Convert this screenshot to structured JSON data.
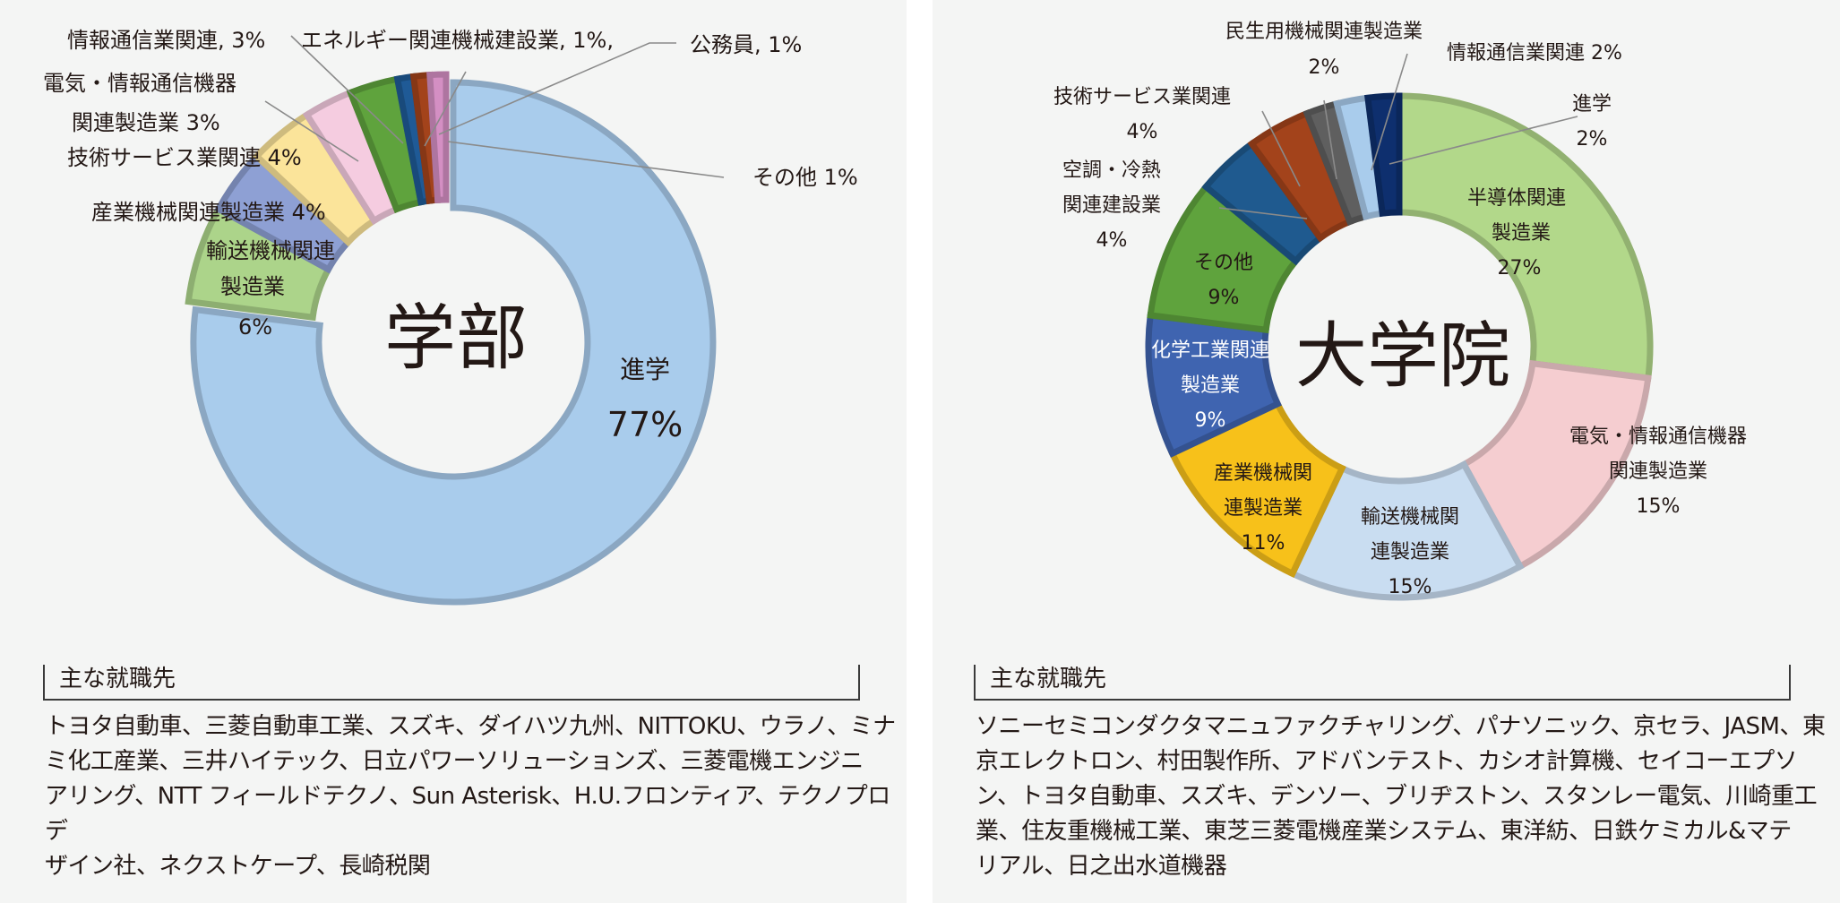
{
  "chart_data": [
    {
      "type": "pie",
      "title": "学部",
      "style": "donut",
      "slices": [
        {
          "label": "進学",
          "value": 77,
          "color": "#a9ccec",
          "value_text": "77%"
        },
        {
          "label": "輸送機械関連製造業",
          "value": 6,
          "color": "#acd48a",
          "value_text": "6%"
        },
        {
          "label": "産業機械関連製造業",
          "value": 4,
          "color": "#8ea0d4",
          "value_text": "4%"
        },
        {
          "label": "技術サービス業関連",
          "value": 4,
          "color": "#fbe49a",
          "value_text": "4%"
        },
        {
          "label": "電気・情報通信機器関連製造業",
          "value": 3,
          "color": "#f5cce0",
          "value_text": "3%"
        },
        {
          "label": "情報通信業関連",
          "value": 3,
          "color": "#5fa33d",
          "value_text": "3%"
        },
        {
          "label": "エネルギー関連機械建設業",
          "value": 1,
          "color": "#1f5a96",
          "value_text": "1%"
        },
        {
          "label": "公務員",
          "value": 1,
          "color": "#a3431b",
          "value_text": "1%"
        },
        {
          "label": "その他",
          "value": 1,
          "color": "#d48fc3",
          "value_text": "1%"
        }
      ]
    },
    {
      "type": "pie",
      "title": "大学院",
      "style": "donut",
      "slices": [
        {
          "label": "半導体関連製造業",
          "value": 27,
          "color": "#b2d88a",
          "value_text": "27%"
        },
        {
          "label": "電気・情報通信機器関連製造業",
          "value": 15,
          "color": "#f5cdd0",
          "value_text": "15%"
        },
        {
          "label": "輸送機械関連製造業",
          "value": 15,
          "color": "#c9ddf1",
          "value_text": "15%"
        },
        {
          "label": "産業機械関連製造業",
          "value": 11,
          "color": "#f7c11a",
          "value_text": "11%"
        },
        {
          "label": "化学工業関連製造業",
          "value": 9,
          "color": "#3f64b0",
          "value_text": "9%"
        },
        {
          "label": "その他",
          "value": 9,
          "color": "#5fa33d",
          "value_text": "9%"
        },
        {
          "label": "空調・冷熱関連建設業",
          "value": 4,
          "color": "#1f5a8f",
          "value_text": "4%"
        },
        {
          "label": "技術サービス業関連",
          "value": 4,
          "color": "#a3431b",
          "value_text": "4%"
        },
        {
          "label": "民生用機械関連製造業",
          "value": 2,
          "color": "#5f5f5f",
          "value_text": "2%"
        },
        {
          "label": "情報通信業関連",
          "value": 2,
          "color": "#a9ccec",
          "value_text": "2%"
        },
        {
          "label": "進学",
          "value": 2,
          "color": "#0e2f6e",
          "value_text": "2%"
        }
      ]
    }
  ],
  "left": {
    "center_title": "学部",
    "labels": {
      "shingaku_name": "進学",
      "shingaku_pct": "77%",
      "yuso_l1": "輸送機械関連",
      "yuso_l2": "製造業",
      "yuso_l3": "6%",
      "sangyo": "産業機械関連製造業 4%",
      "gijutsu": "技術サービス業関連 4%",
      "denki_l1": "電気・情報通信機器",
      "denki_l2": "関連製造業 3%",
      "joho": "情報通信業関連, 3%",
      "energy": "エネルギー関連機械建設業, 1%,",
      "komuin": "公務員, 1%",
      "sonota": "その他 1%"
    },
    "heading": "主な就職先",
    "companies": [
      "トヨタ自動車、三菱自動車工業、スズキ、ダイハツ九州、NITTOKU、ウラノ、ミナ",
      "ミ化工産業、三井ハイテック、日立パワーソリューションズ、三菱電機エンジニ",
      "アリング、NTT フィールドテクノ、Sun Asterisk、H.U.フロンティア、テクノプロデ",
      "ザイン社、ネクストケープ、長崎税関"
    ]
  },
  "right": {
    "center_title": "大学院",
    "labels": {
      "handotai_l1": "半導体関連",
      "handotai_l2": "製造業",
      "handotai_l3": "27%",
      "denki_l1": "電気・情報通信機器",
      "denki_l2": "関連製造業",
      "denki_l3": "15%",
      "yuso_l1": "輸送機械関",
      "yuso_l2": "連製造業",
      "yuso_l3": "15%",
      "sangyo_l1": "産業機械関",
      "sangyo_l2": "連製造業",
      "sangyo_l3": "11%",
      "kagaku_l1": "化学工業関連",
      "kagaku_l2": "製造業",
      "kagaku_l3": "9%",
      "sonota_l1": "その他",
      "sonota_l2": "9%",
      "kucho_l1": "空調・冷熱",
      "kucho_l2": "関連建設業",
      "kucho_l3": "4%",
      "gijutsu_l1": "技術サービス業関連",
      "gijutsu_l2": "4%",
      "minsei_l1": "民生用機械関連製造業",
      "minsei_l2": "2%",
      "joho": "情報通信業関連 2%",
      "shingaku_l1": "進学",
      "shingaku_l2": "2%"
    },
    "heading": "主な就職先",
    "companies": [
      "ソニーセミコンダクタマニュファクチャリング、パナソニック、京セラ、JASM、東",
      "京エレクトロン、村田製作所、アドバンテスト、カシオ計算機、セイコーエプソ",
      "ン、トヨタ自動車、スズキ、デンソー、ブリヂストン、スタンレー電気、川崎重工",
      "業、住友重機械工業、東芝三菱電機産業システム、東洋紡、日鉄ケミカル&マテ",
      "リアル、日之出水道機器"
    ]
  }
}
